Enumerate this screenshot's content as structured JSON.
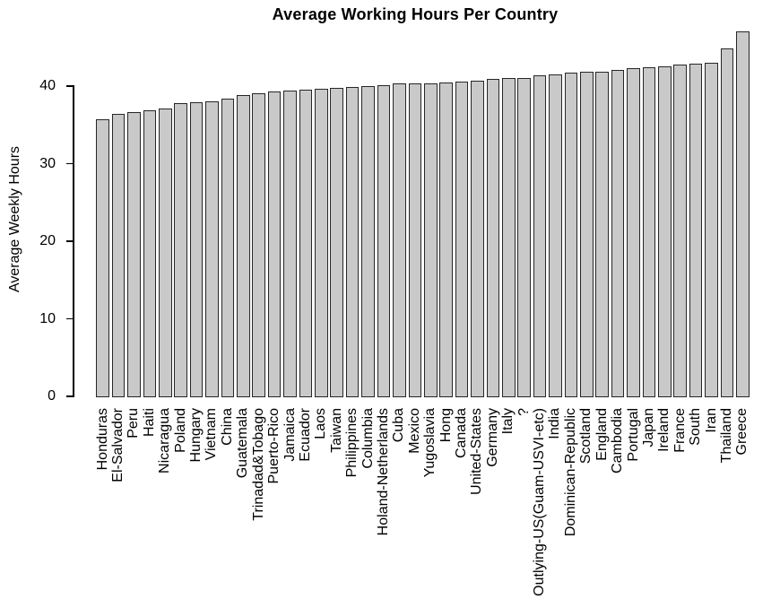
{
  "chart_data": {
    "type": "bar",
    "title": "Average Working Hours Per Country",
    "xlabel": "",
    "ylabel": "Average Weekly Hours",
    "ylim": [
      0,
      47.5
    ],
    "yticks": [
      0,
      10,
      20,
      30,
      40
    ],
    "grid": false,
    "legend": "none",
    "background_color": "#ffffff",
    "bar_color": "#c9c9c9",
    "bar_border_color": "#262626",
    "axis_color": "#000000",
    "categories": [
      "Honduras",
      "El-Salvador",
      "Peru",
      "Haiti",
      "Nicaragua",
      "Poland",
      "Hungary",
      "Vietnam",
      "China",
      "Guatemala",
      "Trinadad&Tobago",
      "Puerto-Rico",
      "Jamaica",
      "Ecuador",
      "Laos",
      "Taiwan",
      "Philippines",
      "Columbia",
      "Holand-Netherlands",
      "Cuba",
      "Mexico",
      "Yugoslavia",
      "Hong",
      "Canada",
      "United-States",
      "Germany",
      "Italy",
      "?",
      "Outlying-US(Guam-USVI-etc)",
      "India",
      "Dominican-Republic",
      "Scotland",
      "England",
      "Cambodia",
      "Portugal",
      "Japan",
      "Ireland",
      "France",
      "South",
      "Iran",
      "Thailand",
      "Greece"
    ],
    "values": [
      35.7,
      36.4,
      36.6,
      36.9,
      37.1,
      37.8,
      37.9,
      38.0,
      38.4,
      38.9,
      39.1,
      39.3,
      39.4,
      39.5,
      39.7,
      39.8,
      39.9,
      40.0,
      40.1,
      40.3,
      40.3,
      40.4,
      40.5,
      40.6,
      40.7,
      40.9,
      41.0,
      41.1,
      41.4,
      41.5,
      41.7,
      41.8,
      41.9,
      42.1,
      42.3,
      42.4,
      42.6,
      42.8,
      42.9,
      43.0,
      44.9,
      47.0
    ]
  }
}
